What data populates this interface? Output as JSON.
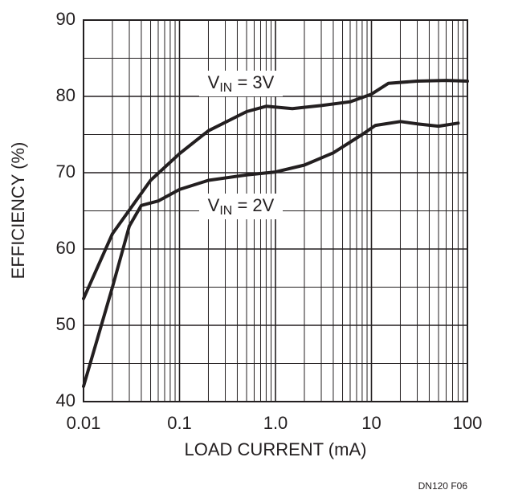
{
  "chart_data": {
    "type": "line",
    "xlabel": "LOAD CURRENT (mA)",
    "ylabel": "EFFICIENCY (%)",
    "footnote": "DN120 F06",
    "xscale": "log",
    "grid": true,
    "minor_grid": true,
    "xlim": [
      0.01,
      100
    ],
    "xticks": [
      0.01,
      0.1,
      {
        "value": 1,
        "label": "1.0"
      },
      10,
      100
    ],
    "ylim": [
      40,
      90
    ],
    "yticks": [
      40,
      50,
      60,
      70,
      80,
      90
    ],
    "series": [
      {
        "name": "VIN = 3V",
        "color": "#231f20",
        "x": [
          0.01,
          0.02,
          0.05,
          0.1,
          0.2,
          0.5,
          0.8,
          1.5,
          3,
          6,
          10,
          15,
          30,
          60,
          100
        ],
        "values": [
          53.5,
          62,
          69,
          72.5,
          75.5,
          78,
          78.7,
          78.4,
          78.8,
          79.3,
          80.3,
          81.7,
          82,
          82.1,
          82
        ]
      },
      {
        "name": "VIN = 2V",
        "color": "#231f20",
        "x": [
          0.01,
          0.02,
          0.03,
          0.04,
          0.06,
          0.1,
          0.2,
          0.5,
          1,
          2,
          4,
          8,
          11,
          20,
          30,
          50,
          80
        ],
        "values": [
          42,
          55,
          63,
          65.7,
          66.3,
          67.8,
          69,
          69.7,
          70.1,
          71,
          72.6,
          75,
          76.2,
          76.7,
          76.4,
          76.1,
          76.5
        ]
      }
    ]
  }
}
